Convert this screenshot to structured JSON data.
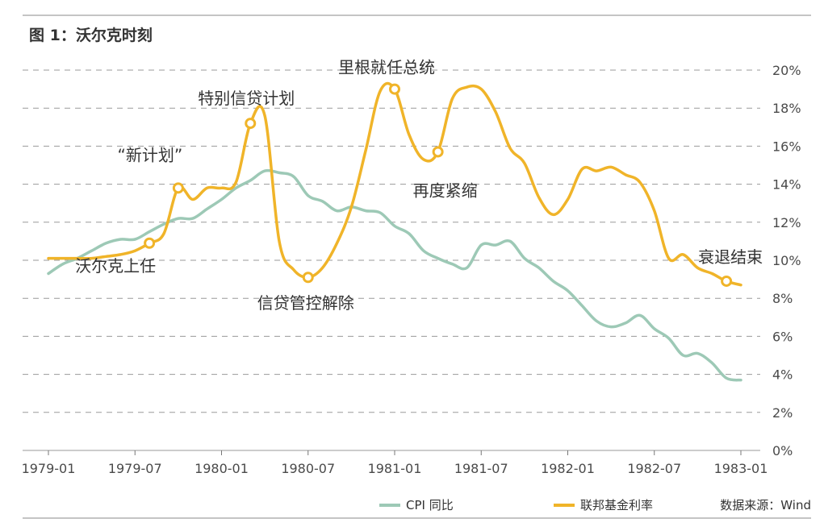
{
  "chart_data": {
    "type": "line",
    "title": "图 1：沃尔克时刻",
    "source": "数据来源：Wind",
    "y_axis": {
      "min": 0,
      "max": 20,
      "step": 2,
      "unit": "%",
      "side": "right",
      "tick_labels": [
        "0%",
        "2%",
        "4%",
        "6%",
        "8%",
        "10%",
        "12%",
        "14%",
        "16%",
        "18%",
        "20%"
      ]
    },
    "x_axis": {
      "start": "1979-01",
      "end": "1983-01",
      "tick_labels": [
        "1979-01",
        "1979-07",
        "1980-01",
        "1980-07",
        "1981-01",
        "1981-07",
        "1982-01",
        "1982-07",
        "1983-01"
      ]
    },
    "grid": "horizontal dashed",
    "legend_position": "bottom",
    "series": [
      {
        "name": "CPI 同比",
        "color": "#9dc9b6",
        "points": [
          [
            "1979-01",
            9.3
          ],
          [
            "1979-02",
            9.8
          ],
          [
            "1979-03",
            10.1
          ],
          [
            "1979-04",
            10.5
          ],
          [
            "1979-05",
            10.9
          ],
          [
            "1979-06",
            11.1
          ],
          [
            "1979-07",
            11.1
          ],
          [
            "1979-08",
            11.5
          ],
          [
            "1979-09",
            11.9
          ],
          [
            "1979-10",
            12.2
          ],
          [
            "1979-11",
            12.2
          ],
          [
            "1979-12",
            12.7
          ],
          [
            "1980-01",
            13.2
          ],
          [
            "1980-02",
            13.8
          ],
          [
            "1980-03",
            14.2
          ],
          [
            "1980-04",
            14.7
          ],
          [
            "1980-05",
            14.6
          ],
          [
            "1980-06",
            14.4
          ],
          [
            "1980-07",
            13.4
          ],
          [
            "1980-08",
            13.1
          ],
          [
            "1980-09",
            12.6
          ],
          [
            "1980-10",
            12.8
          ],
          [
            "1980-11",
            12.6
          ],
          [
            "1980-12",
            12.5
          ],
          [
            "1981-01",
            11.8
          ],
          [
            "1981-02",
            11.4
          ],
          [
            "1981-03",
            10.5
          ],
          [
            "1981-04",
            10.1
          ],
          [
            "1981-05",
            9.8
          ],
          [
            "1981-06",
            9.6
          ],
          [
            "1981-07",
            10.8
          ],
          [
            "1981-08",
            10.8
          ],
          [
            "1981-09",
            11.0
          ],
          [
            "1981-10",
            10.1
          ],
          [
            "1981-11",
            9.6
          ],
          [
            "1981-12",
            8.9
          ],
          [
            "1982-01",
            8.4
          ],
          [
            "1982-02",
            7.6
          ],
          [
            "1982-03",
            6.8
          ],
          [
            "1982-04",
            6.5
          ],
          [
            "1982-05",
            6.7
          ],
          [
            "1982-06",
            7.1
          ],
          [
            "1982-07",
            6.4
          ],
          [
            "1982-08",
            5.9
          ],
          [
            "1982-09",
            5.0
          ],
          [
            "1982-10",
            5.1
          ],
          [
            "1982-11",
            4.6
          ],
          [
            "1982-12",
            3.8
          ],
          [
            "1983-01",
            3.7
          ]
        ]
      },
      {
        "name": "联邦基金利率",
        "color": "#f0b429",
        "points": [
          [
            "1979-01",
            10.1
          ],
          [
            "1979-02",
            10.1
          ],
          [
            "1979-03",
            10.1
          ],
          [
            "1979-04",
            10.1
          ],
          [
            "1979-05",
            10.2
          ],
          [
            "1979-06",
            10.3
          ],
          [
            "1979-07",
            10.5
          ],
          [
            "1979-08",
            10.9
          ],
          [
            "1979-09",
            11.4
          ],
          [
            "1979-10",
            13.8
          ],
          [
            "1979-11",
            13.2
          ],
          [
            "1979-12",
            13.8
          ],
          [
            "1980-01",
            13.8
          ],
          [
            "1980-02",
            14.1
          ],
          [
            "1980-03",
            17.2
          ],
          [
            "1980-04",
            17.6
          ],
          [
            "1980-05",
            11.0
          ],
          [
            "1980-06",
            9.5
          ],
          [
            "1980-07",
            9.1
          ],
          [
            "1980-08",
            9.6
          ],
          [
            "1980-09",
            10.9
          ],
          [
            "1980-10",
            12.8
          ],
          [
            "1980-11",
            15.8
          ],
          [
            "1980-12",
            18.9
          ],
          [
            "1981-01",
            19.0
          ],
          [
            "1981-02",
            16.6
          ],
          [
            "1981-03",
            15.3
          ],
          [
            "1981-04",
            15.7
          ],
          [
            "1981-05",
            18.5
          ],
          [
            "1981-06",
            19.1
          ],
          [
            "1981-07",
            19.0
          ],
          [
            "1981-08",
            17.8
          ],
          [
            "1981-09",
            15.9
          ],
          [
            "1981-10",
            15.1
          ],
          [
            "1981-11",
            13.3
          ],
          [
            "1981-12",
            12.4
          ],
          [
            "1982-01",
            13.2
          ],
          [
            "1982-02",
            14.8
          ],
          [
            "1982-03",
            14.7
          ],
          [
            "1982-04",
            14.9
          ],
          [
            "1982-05",
            14.5
          ],
          [
            "1982-06",
            14.1
          ],
          [
            "1982-07",
            12.6
          ],
          [
            "1982-08",
            10.1
          ],
          [
            "1982-09",
            10.3
          ],
          [
            "1982-10",
            9.6
          ],
          [
            "1982-11",
            9.3
          ],
          [
            "1982-12",
            8.9
          ],
          [
            "1983-01",
            8.7
          ]
        ],
        "markers": [
          [
            "1979-08",
            10.9
          ],
          [
            "1979-10",
            13.8
          ],
          [
            "1980-03",
            17.2
          ],
          [
            "1980-07",
            9.1
          ],
          [
            "1981-01",
            19.0
          ],
          [
            "1981-04",
            15.7
          ],
          [
            "1982-12",
            8.9
          ]
        ]
      }
    ],
    "annotations": [
      {
        "text": "沃尔克上任",
        "at": [
          "1979-08",
          10.9
        ]
      },
      {
        "text": "“新计划”",
        "at": [
          "1979-10",
          13.8
        ]
      },
      {
        "text": "特别信贷计划",
        "at": [
          "1980-03",
          17.2
        ]
      },
      {
        "text": "信贷管控解除",
        "at": [
          "1980-07",
          9.1
        ]
      },
      {
        "text": "里根就任总统",
        "at": [
          "1981-01",
          19.0
        ]
      },
      {
        "text": "再度紧缩",
        "at": [
          "1981-04",
          15.7
        ]
      },
      {
        "text": "衰退结束",
        "at": [
          "1982-12",
          8.9
        ]
      }
    ]
  }
}
